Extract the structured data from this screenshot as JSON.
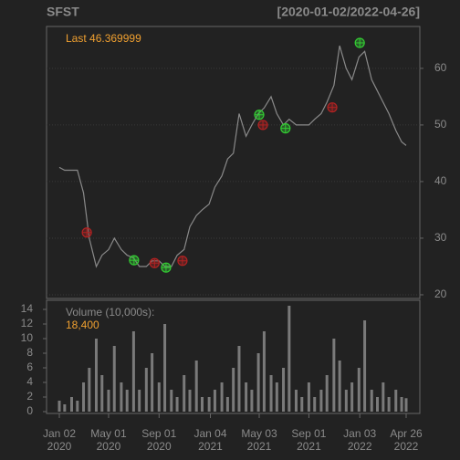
{
  "chart_data": [
    {
      "type": "line",
      "title": "SFST",
      "date_range": "[2020-01-02/2022-04-26]",
      "last_label": "Last 46.369999",
      "color": "#8a8a8a",
      "grid": true,
      "x": [
        "2020-01-02",
        "2020-01-15",
        "2020-02-01",
        "2020-02-15",
        "2020-03-01",
        "2020-03-15",
        "2020-04-01",
        "2020-04-15",
        "2020-05-01",
        "2020-05-15",
        "2020-06-01",
        "2020-06-15",
        "2020-07-01",
        "2020-07-15",
        "2020-08-01",
        "2020-08-15",
        "2020-09-01",
        "2020-09-15",
        "2020-10-01",
        "2020-10-15",
        "2020-11-01",
        "2020-11-15",
        "2020-12-01",
        "2020-12-15",
        "2021-01-01",
        "2021-01-15",
        "2021-02-01",
        "2021-02-15",
        "2021-03-01",
        "2021-03-15",
        "2021-04-01",
        "2021-04-15",
        "2021-05-01",
        "2021-05-15",
        "2021-06-01",
        "2021-06-15",
        "2021-07-01",
        "2021-07-15",
        "2021-08-01",
        "2021-08-15",
        "2021-09-01",
        "2021-09-15",
        "2021-10-01",
        "2021-10-15",
        "2021-11-01",
        "2021-11-15",
        "2021-12-01",
        "2021-12-15",
        "2022-01-01",
        "2022-01-15",
        "2022-02-01",
        "2022-02-15",
        "2022-03-01",
        "2022-03-15",
        "2022-04-01",
        "2022-04-15",
        "2022-04-26"
      ],
      "values": [
        42.5,
        42,
        42,
        42,
        38,
        30,
        25,
        27,
        28,
        30,
        28,
        27,
        26.5,
        25,
        25,
        26,
        26,
        25,
        25,
        27,
        28,
        32,
        34,
        35,
        36,
        39,
        41,
        44,
        45,
        52,
        48,
        50,
        52,
        53,
        55,
        52,
        50,
        51,
        50,
        50,
        50,
        51,
        52,
        54,
        57,
        64,
        60,
        58,
        62,
        63,
        58,
        56,
        54,
        52,
        49,
        47,
        46.37
      ],
      "markers": [
        {
          "x": "2020-03-09",
          "y": 31.0,
          "color": "#b22222"
        },
        {
          "x": "2020-07-02",
          "y": 26.1,
          "color": "#33cc33"
        },
        {
          "x": "2020-08-21",
          "y": 25.6,
          "color": "#b22222"
        },
        {
          "x": "2020-09-18",
          "y": 24.8,
          "color": "#33cc33"
        },
        {
          "x": "2020-10-28",
          "y": 26.0,
          "color": "#b22222"
        },
        {
          "x": "2021-05-03",
          "y": 51.8,
          "color": "#33cc33"
        },
        {
          "x": "2021-05-12",
          "y": 50.0,
          "color": "#b22222"
        },
        {
          "x": "2021-07-06",
          "y": 49.4,
          "color": "#33cc33"
        },
        {
          "x": "2021-10-28",
          "y": 53.1,
          "color": "#b22222"
        },
        {
          "x": "2022-01-03",
          "y": 64.5,
          "color": "#33cc33"
        }
      ],
      "xlim": [
        "2020-01-02",
        "2022-04-26"
      ],
      "ylim": [
        19.35,
        67.4
      ],
      "yticks": [
        20,
        30,
        40,
        50,
        60
      ]
    },
    {
      "type": "bar",
      "title": "Volume (10,000s):",
      "last_label": "18,400",
      "color": "#7a7a7a",
      "x": [
        "2020-01-02",
        "2020-01-15",
        "2020-02-01",
        "2020-02-15",
        "2020-03-01",
        "2020-03-15",
        "2020-04-01",
        "2020-04-15",
        "2020-05-01",
        "2020-05-15",
        "2020-06-01",
        "2020-06-15",
        "2020-07-01",
        "2020-07-15",
        "2020-08-01",
        "2020-08-15",
        "2020-09-01",
        "2020-09-15",
        "2020-10-01",
        "2020-10-15",
        "2020-11-01",
        "2020-11-15",
        "2020-12-01",
        "2020-12-15",
        "2021-01-01",
        "2021-01-15",
        "2021-02-01",
        "2021-02-15",
        "2021-03-01",
        "2021-03-15",
        "2021-04-01",
        "2021-04-15",
        "2021-05-01",
        "2021-05-15",
        "2021-06-01",
        "2021-06-15",
        "2021-07-01",
        "2021-07-15",
        "2021-08-01",
        "2021-08-15",
        "2021-09-01",
        "2021-09-15",
        "2021-10-01",
        "2021-10-15",
        "2021-11-01",
        "2021-11-15",
        "2021-12-01",
        "2021-12-15",
        "2022-01-01",
        "2022-01-15",
        "2022-02-01",
        "2022-02-15",
        "2022-03-01",
        "2022-03-15",
        "2022-04-01",
        "2022-04-15",
        "2022-04-26"
      ],
      "values": [
        1.5,
        1,
        2,
        1.5,
        4,
        6,
        10,
        5,
        3,
        9,
        4,
        3,
        11,
        3,
        6,
        8,
        4,
        12,
        3,
        2,
        5,
        3,
        7,
        2,
        2,
        3,
        4,
        2,
        6,
        9,
        4,
        3,
        8,
        11,
        5,
        4,
        6,
        14.5,
        3,
        2,
        4,
        2,
        3,
        5,
        10,
        7,
        3,
        4,
        6,
        12.5,
        3,
        2,
        4,
        2,
        3,
        2,
        1.84
      ],
      "xlim": [
        "2020-01-02",
        "2022-04-26"
      ],
      "ylim": [
        -0.25,
        15.25
      ],
      "yticks": [
        0,
        2,
        4,
        6,
        8,
        10,
        12,
        14
      ],
      "xticks": [
        {
          "value": "2020-01-02",
          "label": "Jan 02\n2020"
        },
        {
          "value": "2020-05-01",
          "label": "May 01\n2020"
        },
        {
          "value": "2020-09-01",
          "label": "Sep 01\n2020"
        },
        {
          "value": "2021-01-04",
          "label": "Jan 04\n2021"
        },
        {
          "value": "2021-05-03",
          "label": "May 03\n2021"
        },
        {
          "value": "2021-09-01",
          "label": "Sep 01\n2021"
        },
        {
          "value": "2022-01-03",
          "label": "Jan 03\n2022"
        },
        {
          "value": "2022-04-26",
          "label": "Apr 26\n2022"
        }
      ]
    }
  ]
}
